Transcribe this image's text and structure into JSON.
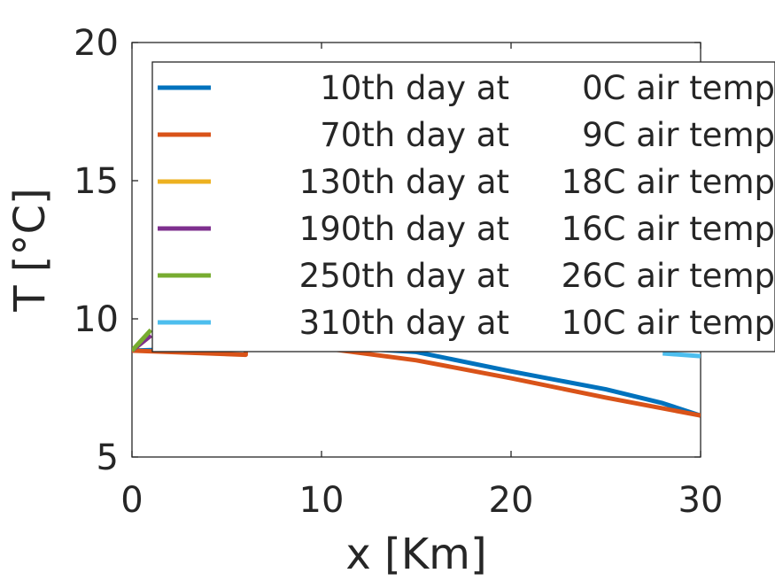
{
  "chart_data": {
    "type": "line",
    "title": "",
    "xlabel": "x [Km]",
    "ylabel": "T [°C]",
    "xlim": [
      0,
      30
    ],
    "ylim": [
      5,
      20
    ],
    "xticks": [
      0,
      10,
      20,
      30
    ],
    "yticks": [
      5,
      10,
      15,
      20
    ],
    "grid": false,
    "legend_position": "top-right",
    "series": [
      {
        "name": "10th day at",
        "temp_label": "0C air temp",
        "color": "#0072BD",
        "x": [
          0,
          5,
          10,
          15,
          20,
          25,
          28,
          30
        ],
        "y": [
          8.85,
          8.95,
          9.0,
          8.8,
          8.1,
          7.45,
          6.95,
          6.5
        ]
      },
      {
        "name": "70th day at",
        "temp_label": "9C air temp",
        "color": "#D95319",
        "x": [
          0,
          6,
          6.01,
          10,
          15,
          20,
          25,
          30
        ],
        "y": [
          8.85,
          8.7,
          9.0,
          8.95,
          8.5,
          7.85,
          7.15,
          6.5
        ]
      },
      {
        "name": "130th day at",
        "temp_label": "18C air temp",
        "color": "#EDB120",
        "x": [
          0,
          1
        ],
        "y": [
          8.85,
          9.4
        ]
      },
      {
        "name": "190th day at",
        "temp_label": "16C air temp",
        "color": "#7E2F8E",
        "x": [
          0,
          1
        ],
        "y": [
          8.85,
          9.4
        ]
      },
      {
        "name": "250th day at",
        "temp_label": "26C air temp",
        "color": "#77AC30",
        "x": [
          0,
          1
        ],
        "y": [
          8.85,
          9.6
        ]
      },
      {
        "name": "310th day at",
        "temp_label": "10C air temp",
        "color": "#4DBEEE",
        "x": [
          28,
          30
        ],
        "y": [
          8.75,
          8.65
        ]
      }
    ]
  }
}
